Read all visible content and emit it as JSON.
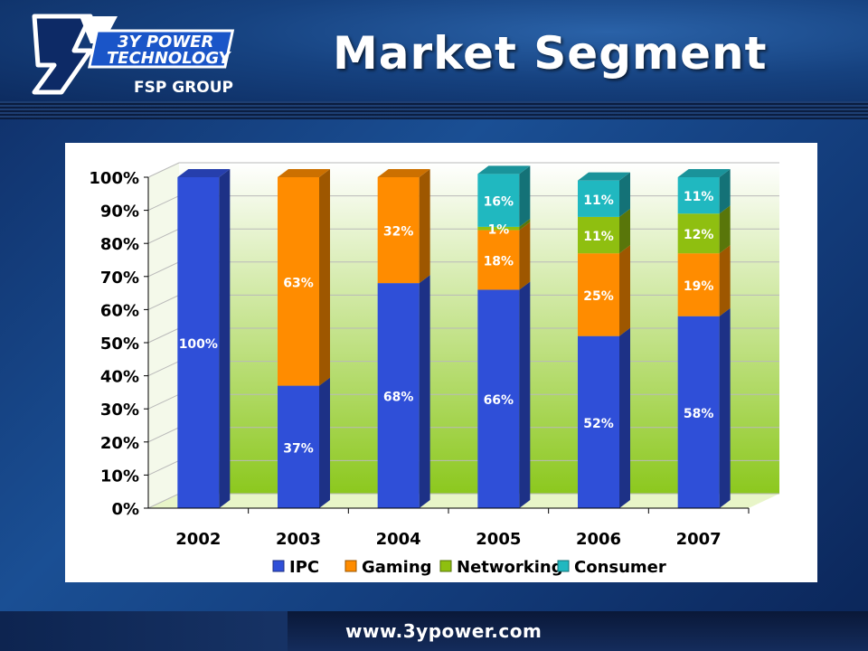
{
  "header": {
    "title": "Market Segment",
    "logo_line1": "3Y POWER",
    "logo_line2": "TECHNOLOGY",
    "logo_line3": "FSP GROUP"
  },
  "footer": {
    "url": "www.3ypower.com"
  },
  "colors": {
    "ipc": "#2f4fd8",
    "gaming": "#ff8c00",
    "networking": "#8fbf10",
    "consumer": "#20b8c0"
  },
  "chart_data": {
    "type": "bar",
    "stacked": true,
    "categories": [
      "2002",
      "2003",
      "2004",
      "2005",
      "2006",
      "2007"
    ],
    "ylim": [
      0,
      100
    ],
    "y_ticks": [
      "0%",
      "10%",
      "20%",
      "30%",
      "40%",
      "50%",
      "60%",
      "70%",
      "80%",
      "90%",
      "100%"
    ],
    "legend_position": "bottom",
    "series": [
      {
        "name": "IPC",
        "values": [
          100,
          37,
          68,
          66,
          52,
          58
        ],
        "labels": [
          "100%",
          "37%",
          "68%",
          "66%",
          "52%",
          "58%"
        ]
      },
      {
        "name": "Gaming",
        "values": [
          0,
          63,
          32,
          18,
          25,
          19
        ],
        "labels": [
          "",
          "63%",
          "32%",
          "18%",
          "25%",
          "19%"
        ]
      },
      {
        "name": "Networking",
        "values": [
          0,
          0,
          0,
          1,
          11,
          12
        ],
        "labels": [
          "",
          "",
          "",
          "1%",
          "11%",
          "12%"
        ]
      },
      {
        "name": "Consumer",
        "values": [
          0,
          0,
          0,
          16,
          11,
          11
        ],
        "labels": [
          "",
          "",
          "",
          "16%",
          "11%",
          "11%"
        ]
      }
    ]
  }
}
